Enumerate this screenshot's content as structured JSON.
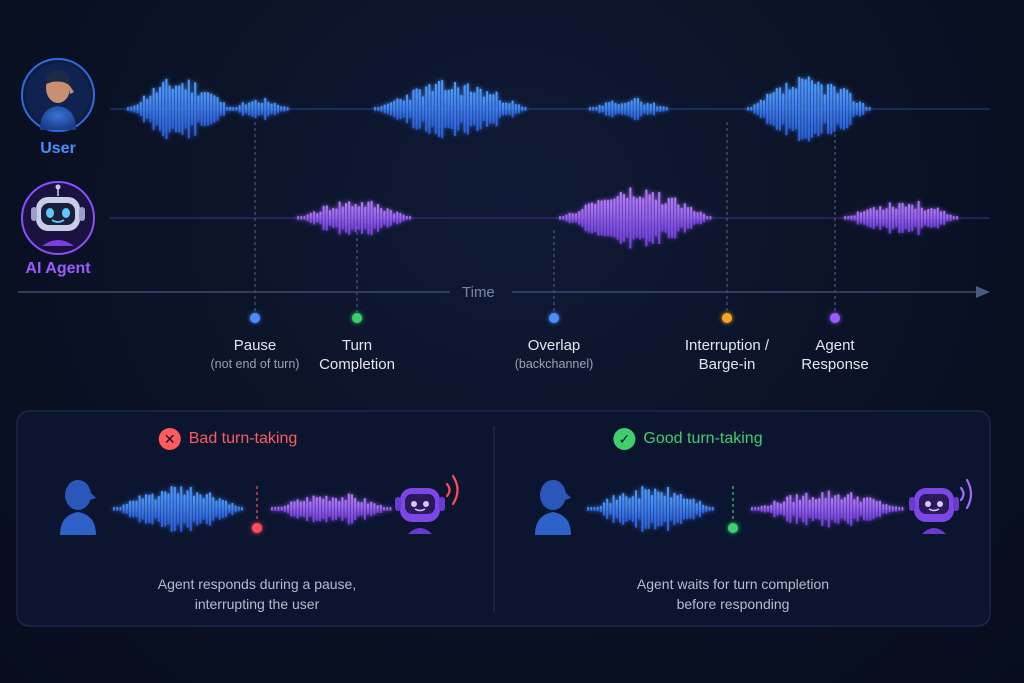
{
  "speakers": {
    "user": {
      "label": "User",
      "color": "#4c8dff"
    },
    "agent": {
      "label": "AI Agent",
      "color": "#9b5cff"
    }
  },
  "timeline": {
    "label": "Time"
  },
  "events": [
    {
      "title": "Pause",
      "subtitle": "(not end of turn)",
      "color": "#4c8dff"
    },
    {
      "title": "Turn\nCompletion",
      "subtitle": "",
      "color": "#3ecf6e"
    },
    {
      "title": "Overlap",
      "subtitle": "(backchannel)",
      "color": "#4c8dff"
    },
    {
      "title": "Interruption /\nBarge-in",
      "subtitle": "",
      "color": "#f5a623"
    },
    {
      "title": "Agent\nResponse",
      "subtitle": "",
      "color": "#9b5cff"
    }
  ],
  "panels": {
    "bad": {
      "title": "Bad turn-taking",
      "icon": "x-icon",
      "color": "#ff5a5f",
      "caption": "Agent responds during a pause,\ninterrupting the user"
    },
    "good": {
      "title": "Good turn-taking",
      "icon": "check-icon",
      "color": "#3ecf6e",
      "caption": "Agent waits for turn completion\nbefore responding"
    }
  }
}
